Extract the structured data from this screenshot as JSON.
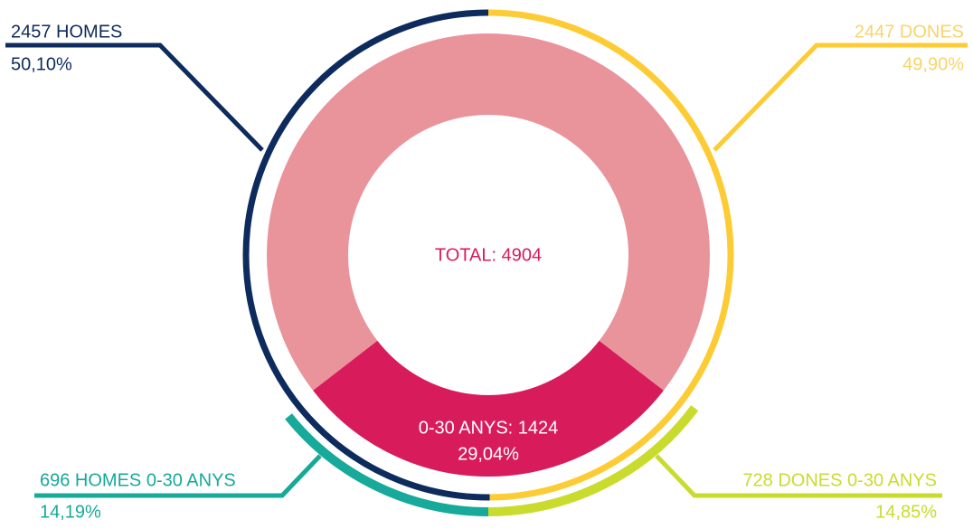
{
  "chart_data": {
    "type": "donut",
    "center_label": "TOTAL: 4904",
    "outer_ring": {
      "categories": [
        "2457 HOMES",
        "2447 DONES"
      ],
      "values": [
        50.1,
        49.9
      ],
      "value_labels": [
        "50,10%",
        "49,90%"
      ],
      "colors": [
        "#0d2b5c",
        "#fdcb33"
      ],
      "label_colors": [
        "#0d2b5c",
        "#f7d46a"
      ]
    },
    "donut": {
      "categories": [
        "0-30 ANYS: 1424"
      ],
      "values": [
        29.04
      ],
      "value_labels": [
        "29,04%"
      ],
      "colors": [
        "#d81b5b"
      ],
      "base_color": "#e9949b"
    },
    "inner_ring": {
      "categories": [
        "696 HOMES 0-30 ANYS",
        "728 DONES 0-30 ANYS"
      ],
      "values": [
        14.19,
        14.85
      ],
      "value_labels": [
        "14,19%",
        "14,85%"
      ],
      "colors": [
        "#17a999",
        "#c9dc2e"
      ],
      "label_colors": [
        "#17a999",
        "#c9dc2e"
      ]
    }
  }
}
